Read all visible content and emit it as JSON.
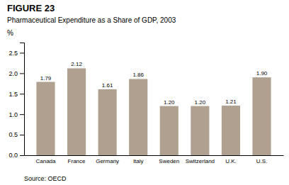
{
  "chart_data": {
    "type": "bar",
    "title": "FIGURE 23",
    "subtitle": "Pharmaceutical Expenditure as a Share of GDP, 2003",
    "source": "Source: OECD",
    "ylabel": "%",
    "categories": [
      "Canada",
      "France",
      "Germany",
      "Italy",
      "Sweden",
      "Switzerland",
      "U.K.",
      "U.S."
    ],
    "values": [
      1.79,
      2.12,
      1.61,
      1.86,
      1.2,
      1.2,
      1.21,
      1.9
    ],
    "value_labels": [
      "1.79",
      "2.12",
      "1.61",
      "1.86",
      "1.20",
      "1.20",
      "1.21",
      "1.90"
    ],
    "data_labels": true,
    "color": "#b0a090",
    "ylim": [
      0,
      2.75
    ],
    "yticks": [
      {
        "value": 0.0,
        "label": "0.0"
      },
      0.5,
      {
        "value": 1.0,
        "label": "1.0"
      },
      1.5,
      {
        "value": 2.0,
        "label": "2.0"
      },
      2.5
    ],
    "grid": false
  }
}
